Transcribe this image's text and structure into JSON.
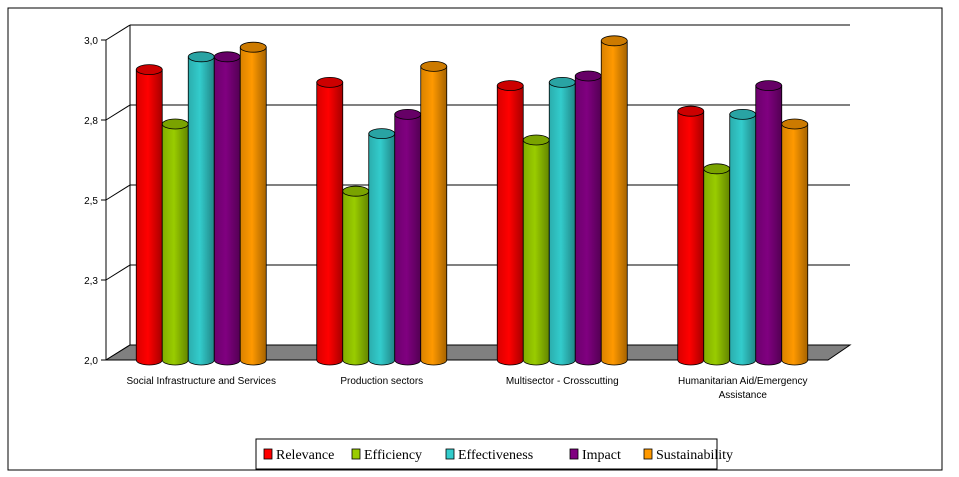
{
  "chart_data": {
    "type": "bar",
    "title": "",
    "xlabel": "",
    "ylabel": "",
    "ylim": [
      2.0,
      3.0
    ],
    "y_ticks": [
      "2,0",
      "2,3",
      "2,5",
      "2,8",
      "3,0"
    ],
    "y_tick_values": [
      2.0,
      2.25,
      2.5,
      2.75,
      3.0
    ],
    "categories": [
      [
        "Social Infrastructure and Services"
      ],
      [
        "Production sectors"
      ],
      [
        "Multisector - Crosscutting"
      ],
      [
        "Humanitarian Aid/Emergency",
        "Assistance"
      ]
    ],
    "series": [
      {
        "name": "Relevance",
        "values": [
          2.87,
          2.83,
          2.82,
          2.74
        ],
        "color": "#ff0000"
      },
      {
        "name": "Efficiency",
        "values": [
          2.7,
          2.49,
          2.65,
          2.56
        ],
        "color": "#99cc00"
      },
      {
        "name": "Effectiveness",
        "values": [
          2.91,
          2.67,
          2.83,
          2.73
        ],
        "color": "#33cccc"
      },
      {
        "name": "Impact",
        "values": [
          2.91,
          2.73,
          2.85,
          2.82
        ],
        "color": "#800080"
      },
      {
        "name": "Sustainability",
        "values": [
          2.94,
          2.88,
          2.96,
          2.7
        ],
        "color": "#ff9900"
      }
    ],
    "grid": true,
    "legend_position": "bottom"
  }
}
